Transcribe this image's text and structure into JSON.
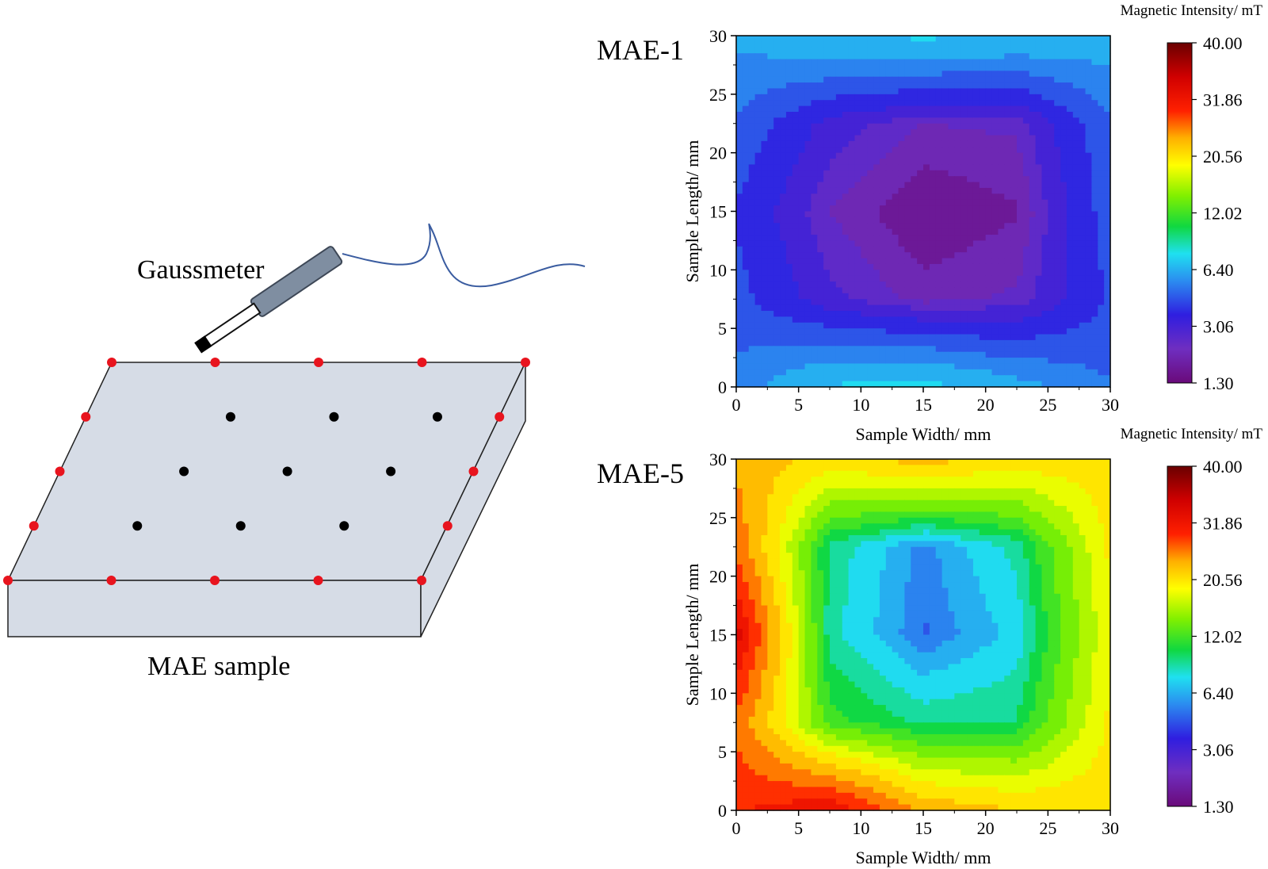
{
  "figure": {
    "diagram": {
      "gaussmeter_label": "Gaussmeter",
      "sample_label": "MAE sample"
    },
    "marker_colors": {
      "edge": "#e8141e",
      "interior": "#000000"
    }
  },
  "chart_data": [
    {
      "type": "heatmap",
      "title": "MAE-1",
      "xlabel": "Sample Width/ mm",
      "ylabel": "Sample Length/ mm",
      "xlim": [
        0,
        30
      ],
      "ylim": [
        0,
        30
      ],
      "x_ticks": [
        "0",
        "5",
        "10",
        "15",
        "20",
        "25",
        "30"
      ],
      "y_ticks": [
        "0",
        "5",
        "10",
        "15",
        "20",
        "25",
        "30"
      ],
      "colorbar_label": "Magnetic Intensity/ mT",
      "colorbar_ticks": [
        "40.00",
        "31.86",
        "20.56",
        "12.02",
        "6.40",
        "3.06",
        "1.30"
      ],
      "colorbar_range": [
        1.3,
        40.0
      ],
      "x": [
        0,
        7.5,
        15,
        22.5,
        30
      ],
      "y": [
        0,
        7.5,
        15,
        22.5,
        30
      ],
      "z": [
        [
          5.5,
          7.2,
          7.5,
          6.4,
          5.2
        ],
        [
          4.6,
          3.0,
          2.2,
          2.5,
          4.4
        ],
        [
          4.2,
          2.4,
          1.5,
          1.9,
          4.8
        ],
        [
          5.0,
          3.2,
          2.4,
          2.5,
          5.0
        ],
        [
          6.2,
          7.0,
          7.3,
          7.0,
          6.5
        ]
      ]
    },
    {
      "type": "heatmap",
      "title": "MAE-5",
      "xlabel": "Sample Width/ mm",
      "ylabel": "Sample Length/ mm",
      "xlim": [
        0,
        30
      ],
      "ylim": [
        0,
        30
      ],
      "x_ticks": [
        "0",
        "5",
        "10",
        "15",
        "20",
        "25",
        "30"
      ],
      "y_ticks": [
        "0",
        "5",
        "10",
        "15",
        "20",
        "25",
        "30"
      ],
      "colorbar_label": "Magnetic Intensity/ mT",
      "colorbar_ticks": [
        "40.00",
        "31.86",
        "20.56",
        "12.02",
        "6.40",
        "3.06",
        "1.30"
      ],
      "colorbar_range": [
        1.3,
        40.0
      ],
      "x": [
        0,
        7.5,
        15,
        22.5,
        30
      ],
      "y": [
        0,
        7.5,
        15,
        22.5,
        30
      ],
      "z": [
        [
          30.0,
          33.0,
          24.0,
          22.0,
          21.0
        ],
        [
          27.0,
          12.0,
          9.5,
          10.0,
          20.0
        ],
        [
          34.0,
          9.0,
          5.0,
          7.5,
          19.0
        ],
        [
          27.0,
          9.5,
          5.5,
          9.0,
          20.0
        ],
        [
          24.0,
          21.0,
          23.0,
          21.0,
          21.0
        ]
      ]
    }
  ]
}
